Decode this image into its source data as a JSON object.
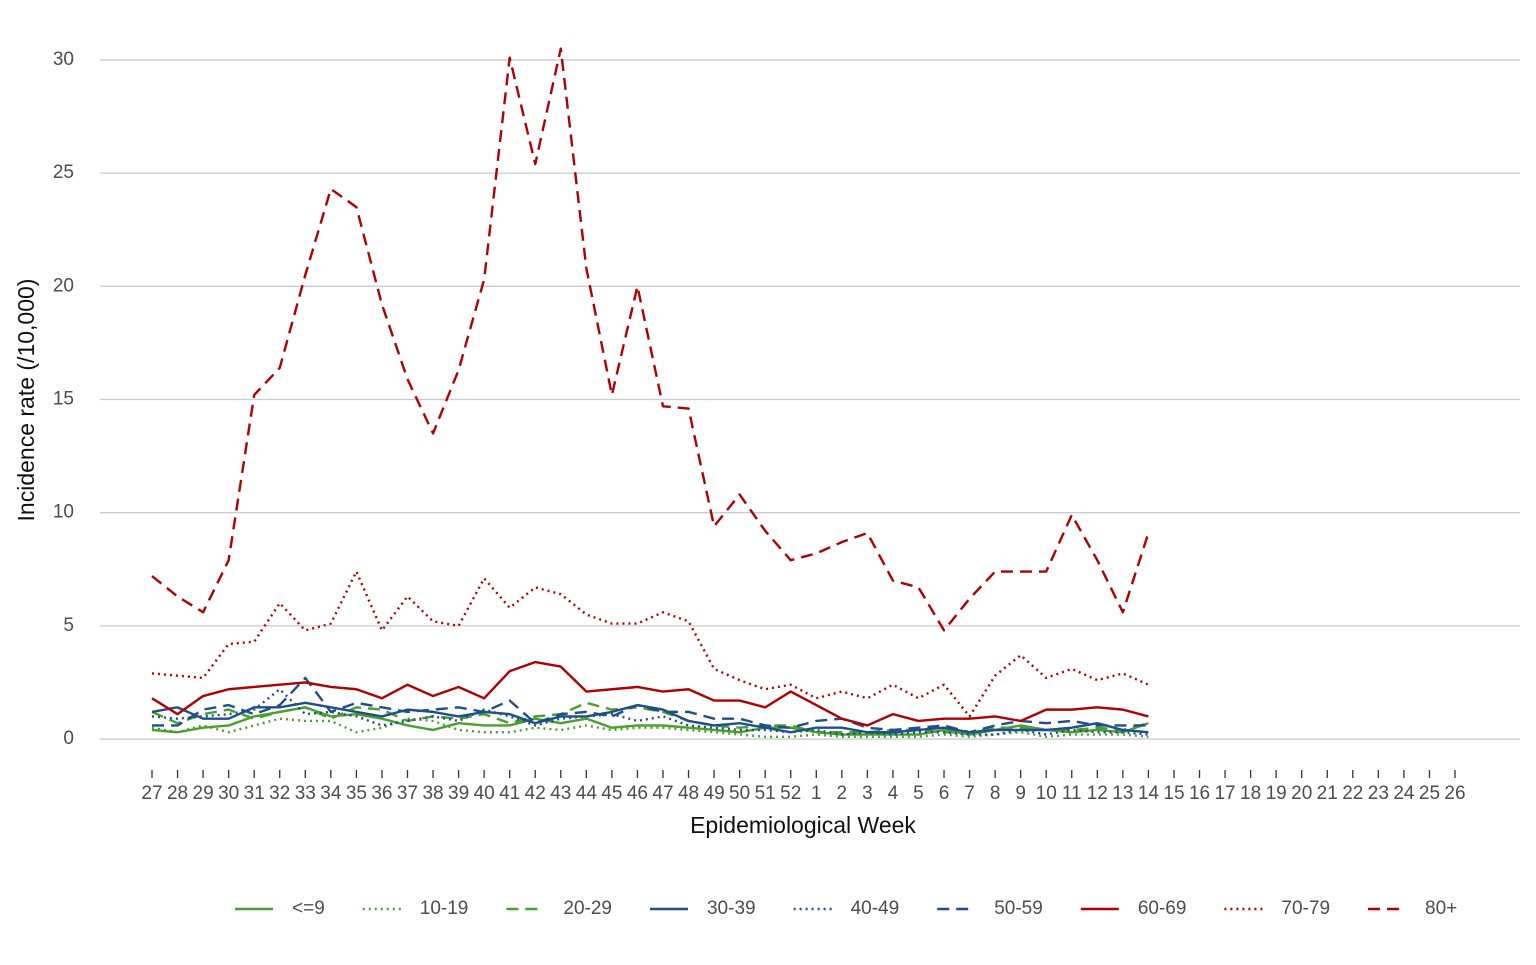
{
  "chart_data": {
    "type": "line",
    "xlabel": "Epidemiological Week",
    "ylabel": "Incidence rate (/10,000)",
    "categories": [
      "27",
      "28",
      "29",
      "30",
      "31",
      "32",
      "33",
      "34",
      "35",
      "36",
      "37",
      "38",
      "39",
      "40",
      "41",
      "42",
      "43",
      "44",
      "45",
      "46",
      "47",
      "48",
      "49",
      "50",
      "51",
      "52",
      "1",
      "2",
      "3",
      "4",
      "5",
      "6",
      "7",
      "8",
      "9",
      "10",
      "11",
      "12",
      "13",
      "14",
      "15",
      "16",
      "17",
      "18",
      "19",
      "20",
      "21",
      "22",
      "23",
      "24",
      "25",
      "26"
    ],
    "ylim": [
      -1.5,
      31.5
    ],
    "yticks": [
      0,
      5,
      10,
      15,
      20,
      25,
      30
    ],
    "grid": true,
    "legend": "bottom",
    "series": [
      {
        "name": "<=9",
        "color": "#4aa02c",
        "dash": "solid",
        "values": [
          0.4,
          0.3,
          0.5,
          0.6,
          1.0,
          1.2,
          1.4,
          1.0,
          1.1,
          0.9,
          0.6,
          0.4,
          0.7,
          0.6,
          0.6,
          0.9,
          0.7,
          0.9,
          0.5,
          0.6,
          0.6,
          0.5,
          0.4,
          0.3,
          0.5,
          0.5,
          0.3,
          0.2,
          0.2,
          0.2,
          0.2,
          0.4,
          0.2,
          0.4,
          0.6,
          0.4,
          0.3,
          0.4,
          0.3,
          0.7,
          null,
          null,
          null,
          null,
          null,
          null,
          null,
          null,
          null,
          null,
          null,
          null
        ]
      },
      {
        "name": "10-19",
        "color": "#4aa02c",
        "dash": "dotted",
        "values": [
          0.5,
          0.3,
          0.6,
          0.3,
          0.6,
          0.9,
          0.8,
          0.8,
          0.3,
          0.5,
          0.9,
          0.8,
          0.4,
          0.3,
          0.3,
          0.5,
          0.4,
          0.6,
          0.4,
          0.5,
          0.5,
          0.4,
          0.3,
          0.2,
          0.1,
          0.1,
          0.2,
          0.1,
          0.1,
          0.1,
          0.1,
          0.2,
          0.1,
          0.2,
          0.3,
          0.1,
          0.2,
          0.2,
          0.2,
          0.1,
          null,
          null,
          null,
          null,
          null,
          null,
          null,
          null,
          null,
          null,
          null,
          null
        ]
      },
      {
        "name": "20-29",
        "color": "#4aa02c",
        "dash": "dashed",
        "values": [
          1.2,
          0.7,
          1.1,
          1.3,
          0.9,
          1.2,
          1.4,
          0.9,
          1.4,
          1.3,
          0.8,
          1.0,
          0.9,
          1.1,
          0.7,
          1.0,
          1.1,
          1.6,
          1.3,
          1.4,
          1.2,
          0.8,
          0.6,
          0.5,
          0.6,
          0.6,
          0.3,
          0.3,
          0.3,
          0.4,
          0.4,
          0.3,
          0.3,
          0.5,
          0.5,
          0.4,
          0.4,
          0.5,
          0.4,
          0.7,
          null,
          null,
          null,
          null,
          null,
          null,
          null,
          null,
          null,
          null,
          null,
          null
        ]
      },
      {
        "name": "30-39",
        "color": "#1f4e8c",
        "dash": "solid",
        "values": [
          1.2,
          1.4,
          0.9,
          0.9,
          1.4,
          1.4,
          1.6,
          1.4,
          1.2,
          1.0,
          1.3,
          1.2,
          1.0,
          1.2,
          1.1,
          0.7,
          1.0,
          1.0,
          1.2,
          1.5,
          1.3,
          0.8,
          0.6,
          0.7,
          0.5,
          0.3,
          0.5,
          0.5,
          0.3,
          0.3,
          0.4,
          0.5,
          0.3,
          0.4,
          0.4,
          0.4,
          0.5,
          0.7,
          0.4,
          0.3,
          null,
          null,
          null,
          null,
          null,
          null,
          null,
          null,
          null,
          null,
          null,
          null
        ]
      },
      {
        "name": "40-49",
        "color": "#1f4e8c",
        "dash": "dotted",
        "values": [
          1.0,
          0.9,
          1.0,
          1.1,
          1.3,
          2.2,
          1.1,
          1.2,
          1.0,
          0.6,
          0.8,
          1.0,
          0.8,
          1.3,
          1.0,
          0.6,
          0.9,
          1.0,
          1.1,
          0.8,
          1.0,
          0.6,
          0.5,
          0.4,
          0.4,
          0.3,
          0.4,
          0.2,
          0.3,
          0.2,
          0.3,
          0.3,
          0.2,
          0.2,
          0.4,
          0.2,
          0.4,
          0.3,
          0.3,
          0.2,
          null,
          null,
          null,
          null,
          null,
          null,
          null,
          null,
          null,
          null,
          null,
          null
        ]
      },
      {
        "name": "50-59",
        "color": "#1f4e8c",
        "dash": "dashed",
        "values": [
          0.6,
          0.6,
          1.3,
          1.5,
          1.1,
          1.5,
          2.7,
          1.2,
          1.6,
          1.4,
          1.2,
          1.3,
          1.4,
          1.2,
          1.7,
          0.7,
          1.1,
          1.2,
          1.0,
          1.5,
          1.2,
          1.2,
          0.9,
          0.9,
          0.6,
          0.5,
          0.8,
          0.9,
          0.5,
          0.4,
          0.5,
          0.6,
          0.3,
          0.6,
          0.8,
          0.7,
          0.8,
          0.6,
          0.6,
          0.6,
          null,
          null,
          null,
          null,
          null,
          null,
          null,
          null,
          null,
          null,
          null,
          null
        ]
      },
      {
        "name": "60-69",
        "color": "#b00000",
        "dash": "solid",
        "values": [
          1.8,
          1.1,
          1.9,
          2.2,
          2.3,
          2.4,
          2.5,
          2.3,
          2.2,
          1.8,
          2.4,
          1.9,
          2.3,
          1.8,
          3.0,
          3.4,
          3.2,
          2.1,
          2.2,
          2.3,
          2.1,
          2.2,
          1.7,
          1.7,
          1.4,
          2.1,
          1.5,
          0.9,
          0.6,
          1.1,
          0.8,
          0.9,
          0.9,
          1.0,
          0.8,
          1.3,
          1.3,
          1.4,
          1.3,
          1.0,
          null,
          null,
          null,
          null,
          null,
          null,
          null,
          null,
          null,
          null,
          null,
          null
        ]
      },
      {
        "name": "70-79",
        "color": "#b00000",
        "dash": "dotted",
        "values": [
          2.9,
          2.8,
          2.7,
          4.2,
          4.3,
          6.0,
          4.8,
          5.1,
          7.4,
          4.8,
          6.3,
          5.2,
          5.0,
          7.1,
          5.8,
          6.7,
          6.4,
          5.5,
          5.1,
          5.1,
          5.6,
          5.2,
          3.1,
          2.6,
          2.2,
          2.4,
          1.8,
          2.1,
          1.8,
          2.4,
          1.8,
          2.4,
          1.0,
          2.8,
          3.7,
          2.7,
          3.1,
          2.6,
          2.9,
          2.4,
          null,
          null,
          null,
          null,
          null,
          null,
          null,
          null,
          null,
          null,
          null,
          null
        ]
      },
      {
        "name": "80+",
        "color": "#b00000",
        "dash": "dashed",
        "values": [
          7.2,
          6.3,
          5.6,
          7.9,
          15.2,
          16.4,
          20.5,
          24.3,
          23.5,
          19.2,
          15.9,
          13.5,
          16.3,
          20.3,
          30.1,
          25.4,
          30.5,
          20.8,
          15.2,
          20.0,
          14.7,
          14.6,
          9.4,
          10.8,
          9.2,
          7.9,
          8.2,
          8.7,
          9.1,
          7.0,
          6.7,
          4.8,
          6.2,
          7.4,
          7.4,
          7.4,
          9.9,
          7.9,
          5.6,
          9.1,
          null,
          null,
          null,
          null,
          null,
          null,
          null,
          null,
          null,
          null,
          null,
          null
        ]
      }
    ]
  }
}
